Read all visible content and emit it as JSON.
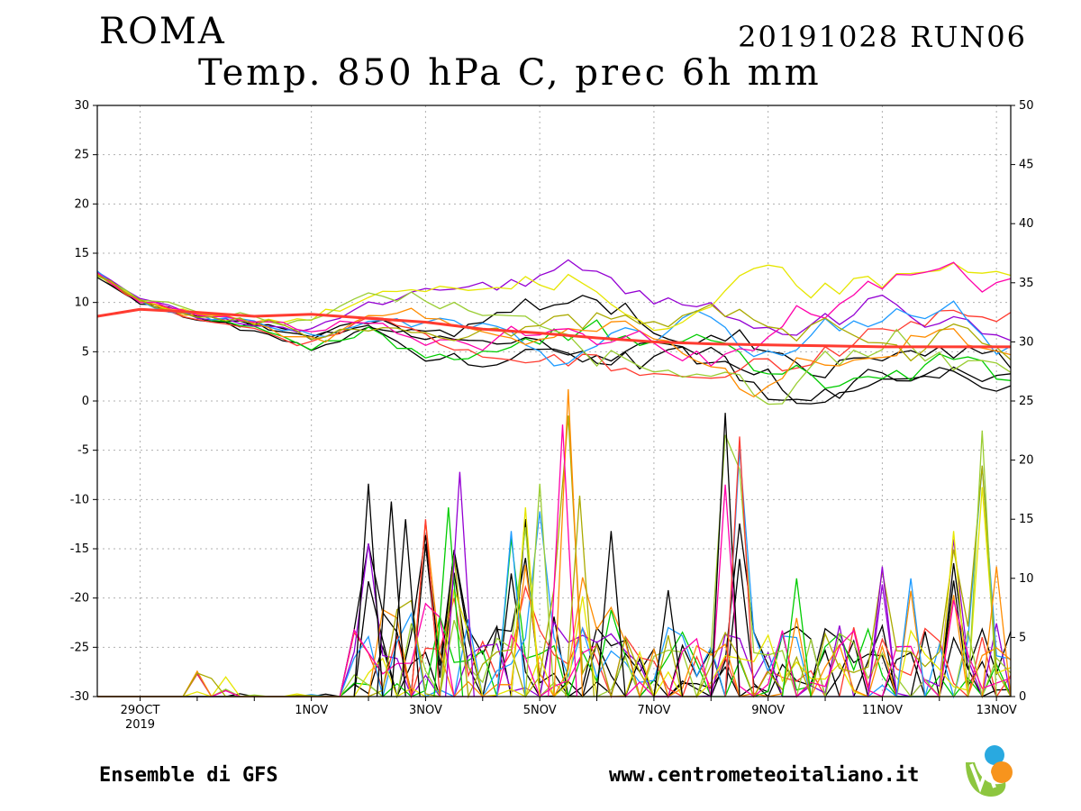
{
  "header": {
    "city": "ROMA",
    "run": "20191028 RUN06",
    "variable": "Temp. 850 hPa C, prec 6h mm"
  },
  "footer": {
    "source": "Ensemble di GFS",
    "website": "www.centrometeoitaliano.it"
  },
  "logo": {
    "icon": "centrometeoitaliano-logo-icon",
    "colors": [
      "#29a9e0",
      "#f7941d",
      "#8dc63f"
    ]
  },
  "chart_data": {
    "type": "line",
    "title": "Temp. 850 hPa C, prec 6h mm",
    "x_axis": {
      "labels": [
        "29OCT",
        "1NOV",
        "3NOV",
        "5NOV",
        "7NOV",
        "9NOV",
        "11NOV",
        "13NOV"
      ],
      "year_label": "2019",
      "label_days": [
        1,
        4,
        6,
        8,
        10,
        12,
        14,
        16
      ],
      "range_days": [
        0.25,
        16.25
      ]
    },
    "y_left": {
      "label": "",
      "min": -30,
      "max": 30,
      "ticks": [
        30,
        25,
        20,
        15,
        10,
        5,
        0,
        -5,
        -10,
        -15,
        -20,
        -25,
        -30
      ]
    },
    "y_right": {
      "label": "",
      "min": 0,
      "max": 50,
      "ticks": [
        50,
        45,
        40,
        35,
        30,
        25,
        20,
        15,
        10,
        5,
        0
      ]
    },
    "grid": true,
    "colors": {
      "mean": "#ff3b30",
      "members": [
        "#000000",
        "#000000",
        "#000000",
        "#ff3b30",
        "#00cc00",
        "#9400d3",
        "#1e9bff",
        "#e6e600",
        "#9acd32",
        "#ff8c00",
        "#ff00aa",
        "#aaaa00"
      ]
    },
    "temp_mean": {
      "name": "",
      "days": [
        0.25,
        1,
        2,
        3,
        4,
        5,
        6,
        7,
        8,
        9,
        10,
        11,
        12,
        13,
        14,
        15,
        16.25
      ],
      "values": [
        8.6,
        9.3,
        9.0,
        8.6,
        8.8,
        8.4,
        8.0,
        7.3,
        6.9,
        6.4,
        6.0,
        5.8,
        5.7,
        5.6,
        5.5,
        5.5,
        5.5
      ]
    },
    "temp_spread": {
      "days": [
        0.25,
        1,
        2,
        3,
        4,
        5,
        6,
        7,
        8,
        9,
        10,
        11,
        12,
        13,
        14,
        15,
        16.25
      ],
      "min": [
        12.5,
        9.8,
        8.0,
        7.2,
        5.0,
        6.5,
        4.0,
        3.5,
        3.5,
        3.0,
        2.5,
        2.0,
        -0.5,
        -0.5,
        2.0,
        2.0,
        0.5
      ],
      "max": [
        13.3,
        10.5,
        9.3,
        8.8,
        9.0,
        10.8,
        12.0,
        12.0,
        13.5,
        15.4,
        12.0,
        13.0,
        14.0,
        14.0,
        15.0,
        15.0,
        13.0
      ]
    },
    "precip_peaks": [
      {
        "day": 5.0,
        "mm": 18.0
      },
      {
        "day": 5.4,
        "mm": 16.5
      },
      {
        "day": 5.65,
        "mm": 15.0
      },
      {
        "day": 6.0,
        "mm": 15.0
      },
      {
        "day": 6.4,
        "mm": 16.0
      },
      {
        "day": 6.6,
        "mm": 19.0
      },
      {
        "day": 7.5,
        "mm": 14.0
      },
      {
        "day": 7.75,
        "mm": 16.0
      },
      {
        "day": 8.0,
        "mm": 18.0
      },
      {
        "day": 8.5,
        "mm": 26.0
      },
      {
        "day": 8.4,
        "mm": 23.0
      },
      {
        "day": 8.7,
        "mm": 17.0
      },
      {
        "day": 9.25,
        "mm": 14.0
      },
      {
        "day": 10.25,
        "mm": 9.0
      },
      {
        "day": 11.25,
        "mm": 24.0
      },
      {
        "day": 11.5,
        "mm": 22.0
      },
      {
        "day": 12.5,
        "mm": 10.0
      },
      {
        "day": 14.0,
        "mm": 11.0
      },
      {
        "day": 14.5,
        "mm": 10.0
      },
      {
        "day": 15.25,
        "mm": 14.0
      },
      {
        "day": 15.75,
        "mm": 22.5
      },
      {
        "day": 16.0,
        "mm": 11.0
      }
    ]
  }
}
